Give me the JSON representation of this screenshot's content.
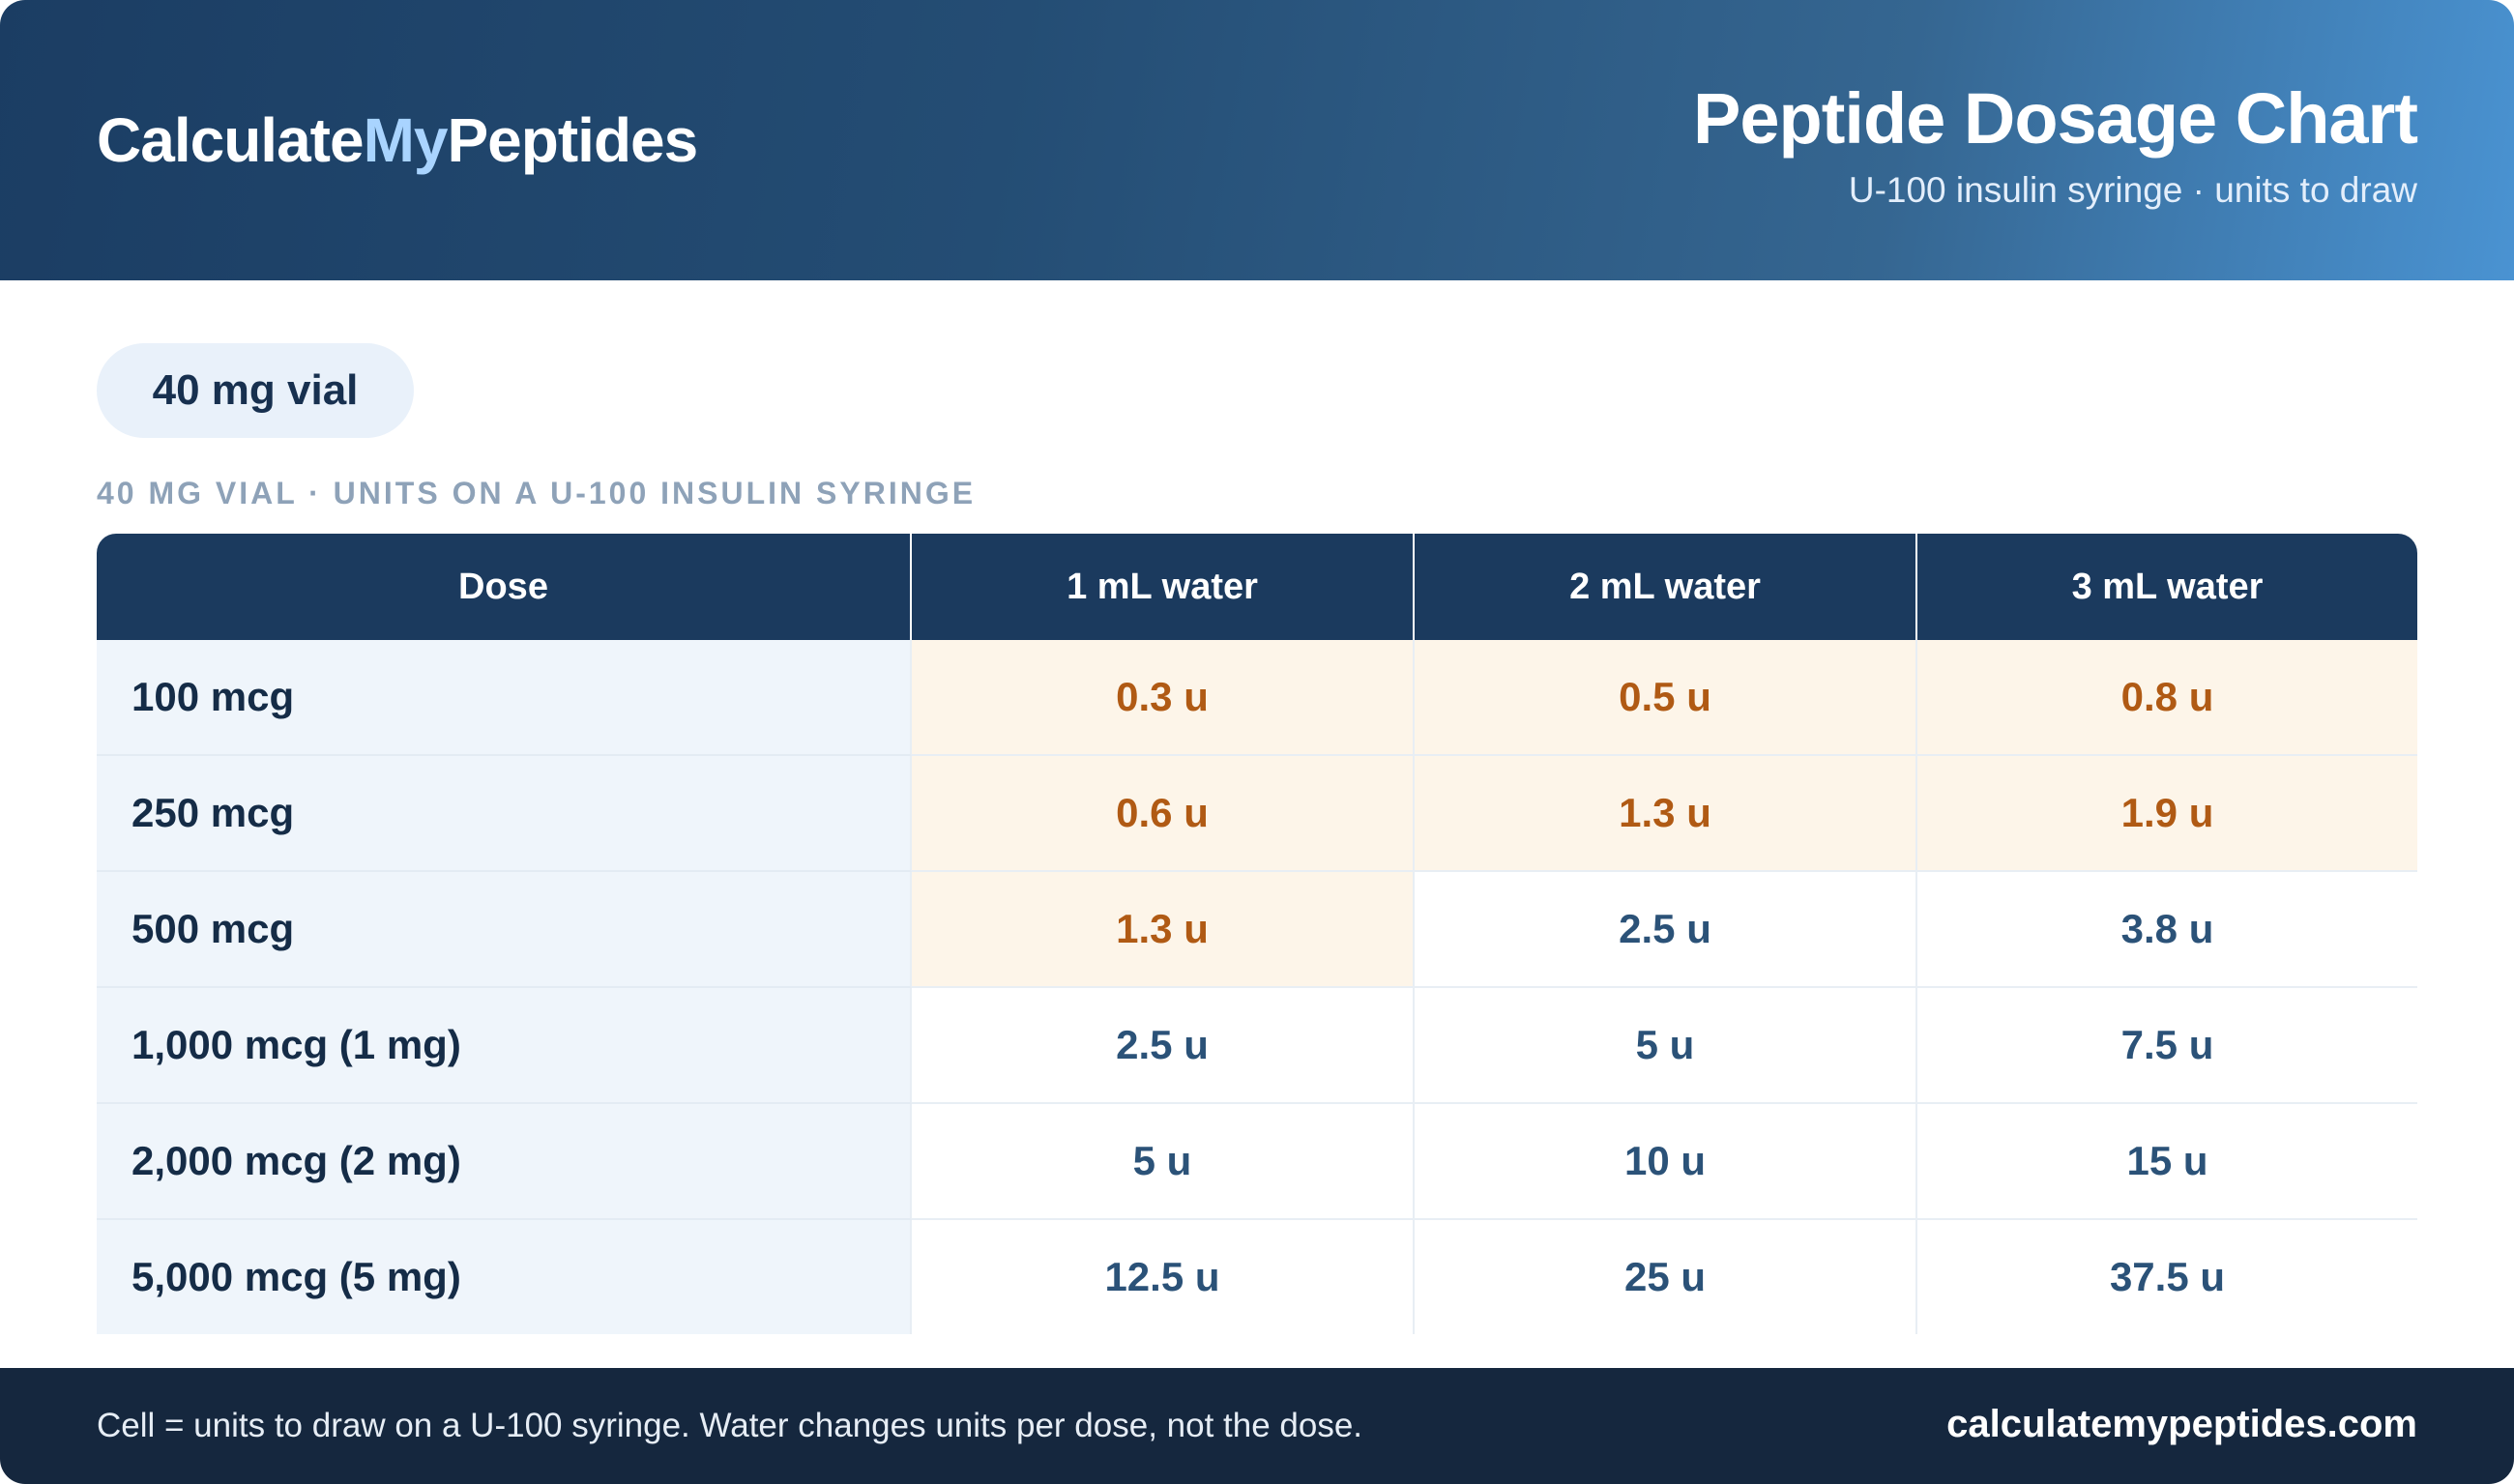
{
  "header": {
    "brand_part1": "Calculate",
    "brand_part2": "My",
    "brand_part3": "Peptides",
    "title": "Peptide Dosage Chart",
    "subtitle": "U-100 insulin syringe · units to draw"
  },
  "vial": {
    "label": "40 mg vial"
  },
  "caption": "40 MG VIAL · UNITS ON A U-100 INSULIN SYRINGE",
  "table": {
    "headers": [
      "Dose",
      "1 mL water",
      "2 mL water",
      "3 mL water"
    ],
    "rows": [
      {
        "dose": "100 mcg",
        "cells": [
          "0.3 u",
          "0.5 u",
          "0.8 u"
        ]
      },
      {
        "dose": "250 mcg",
        "cells": [
          "0.6 u",
          "1.3 u",
          "1.9 u"
        ]
      },
      {
        "dose": "500 mcg",
        "cells": [
          "1.3 u",
          "2.5 u",
          "3.8 u"
        ]
      },
      {
        "dose": "1,000 mcg (1 mg)",
        "cells": [
          "2.5 u",
          "5 u",
          "7.5 u"
        ]
      },
      {
        "dose": "2,000 mcg (2 mg)",
        "cells": [
          "5 u",
          "10 u",
          "15 u"
        ]
      },
      {
        "dose": "5,000 mcg (5 mg)",
        "cells": [
          "12.5 u",
          "25 u",
          "37.5 u"
        ]
      }
    ]
  },
  "footer": {
    "note": "Cell = units to draw on a U-100 syringe. Water changes units per dose, not the dose.",
    "url": "calculatemypeptides.com"
  },
  "colors": {
    "header_dark": "#1b3d63",
    "header_light": "#4a93d2",
    "table_header": "#1b3a5e",
    "highlight_bg": "#fdf5e9",
    "highlight_text": "#b05a14",
    "value_text": "#2b5278",
    "footer_bg": "#15273e"
  }
}
